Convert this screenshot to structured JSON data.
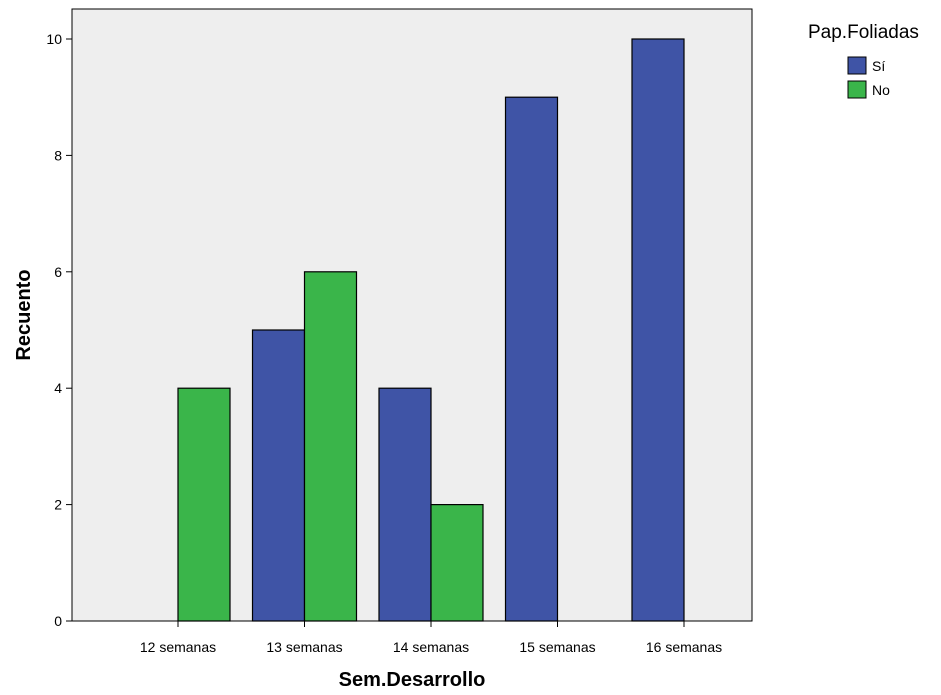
{
  "chart_data": {
    "type": "bar",
    "categories": [
      "12 semanas",
      "13 semanas",
      "14 semanas",
      "15 semanas",
      "16 semanas"
    ],
    "series": [
      {
        "name": "Sí",
        "values": [
          0,
          5,
          4,
          9,
          10
        ],
        "color": "#3F54A6"
      },
      {
        "name": "No",
        "values": [
          4,
          6,
          2,
          0,
          0
        ],
        "color": "#3AB54A"
      }
    ],
    "xlabel": "Sem.Desarrollo",
    "ylabel": "Recuento",
    "ylim": [
      0,
      10.5
    ],
    "yticks": [
      0,
      2,
      4,
      6,
      8,
      10
    ],
    "legend": {
      "title": "Pap.Foliadas",
      "placement": "top-right, outside plot"
    },
    "grid": false,
    "plot_background": "#EEEEEE"
  }
}
